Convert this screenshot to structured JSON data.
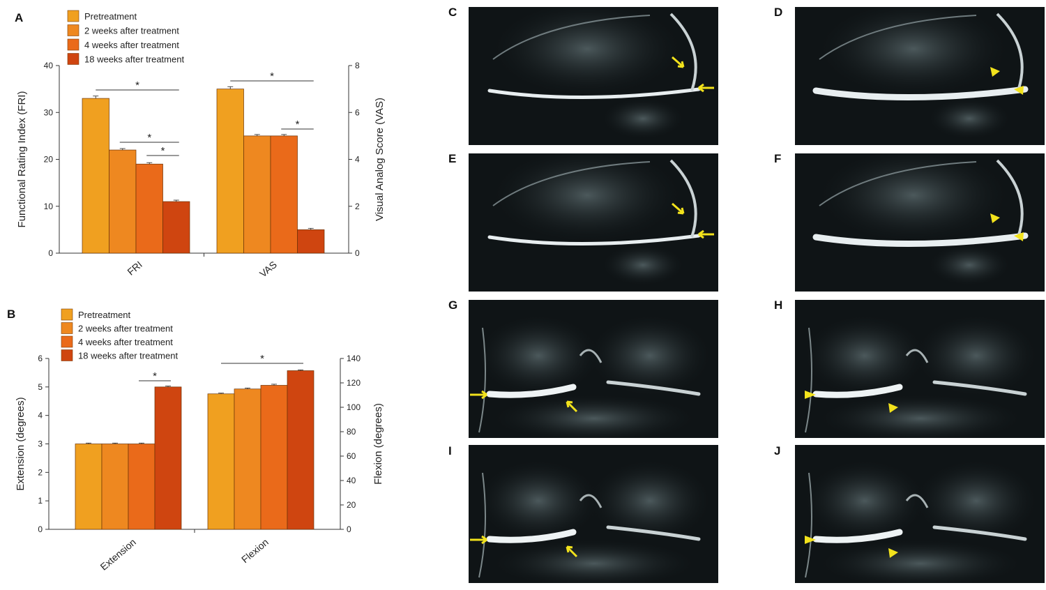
{
  "colors": {
    "pretreatment": "#f0a020",
    "week2": "#ee8820",
    "week4": "#ea6a1a",
    "week18": "#cf4510",
    "axis": "#333333",
    "mri_background": "#0f1416",
    "annotation_yellow": "#f2e21c"
  },
  "chart_data": [
    {
      "panel": "A",
      "type": "bar",
      "legend": [
        "Pretreatment",
        "2 weeks after treatment",
        "4 weeks after treatment",
        "18 weeks after treatment"
      ],
      "categories": [
        "FRI",
        "VAS"
      ],
      "ylabel": "Functional Rating Index (FRI)",
      "ylim": [
        0,
        40
      ],
      "yticks": [
        "0",
        "10",
        "20",
        "30",
        "40"
      ],
      "y2label": "Visual Analog Score (VAS)",
      "y2lim": [
        0,
        8
      ],
      "y2ticks": [
        "0",
        "2",
        "4",
        "6",
        "8"
      ],
      "groups": [
        {
          "category": "FRI",
          "axis": "left",
          "values": [
            33,
            22,
            19,
            11
          ],
          "errors": [
            0.5,
            0.3,
            0.3,
            0.3
          ]
        },
        {
          "category": "VAS",
          "axis": "right",
          "values": [
            7.0,
            5.0,
            5.0,
            1.0
          ],
          "errors": [
            0.1,
            0.06,
            0.06,
            0.06
          ]
        }
      ],
      "significance": [
        {
          "group": 0,
          "from": 0,
          "to": 3,
          "label": "*"
        },
        {
          "group": 0,
          "from": 1,
          "to": 3,
          "label": "*"
        },
        {
          "group": 0,
          "from": 2,
          "to": 3,
          "label": "*"
        },
        {
          "group": 1,
          "from": 0,
          "to": 3,
          "label": "*"
        },
        {
          "group": 1,
          "from": 2,
          "to": 3,
          "label": "*"
        }
      ]
    },
    {
      "panel": "B",
      "type": "bar",
      "legend": [
        "Pretreatment",
        "2 weeks after treatment",
        "4 weeks after treatment",
        "18 weeks after treatment"
      ],
      "categories": [
        "Extension",
        "Flexion"
      ],
      "ylabel": "Extension (degrees)",
      "ylim": [
        0,
        6
      ],
      "yticks": [
        "0",
        "1",
        "2",
        "3",
        "4",
        "5",
        "6"
      ],
      "y2label": "Flexion (degrees)",
      "y2lim": [
        0,
        140
      ],
      "y2ticks": [
        "0",
        "20",
        "40",
        "60",
        "80",
        "100",
        "120",
        "140"
      ],
      "groups": [
        {
          "category": "Extension",
          "axis": "left",
          "values": [
            3.0,
            3.0,
            3.0,
            5.0
          ],
          "errors": [
            0.03,
            0.03,
            0.03,
            0.03
          ]
        },
        {
          "category": "Flexion",
          "axis": "right",
          "values": [
            111,
            115,
            118,
            130
          ],
          "errors": [
            0.6,
            0.8,
            0.9,
            0.6
          ]
        }
      ],
      "significance": [
        {
          "group": 0,
          "from": 2,
          "to": 3,
          "label": "*"
        },
        {
          "group": 1,
          "from": 0,
          "to": 3,
          "label": "*"
        }
      ]
    }
  ],
  "panels": {
    "A": "A",
    "B": "B",
    "mri": [
      {
        "label": "C",
        "view": "sagittal",
        "marker": "arrow"
      },
      {
        "label": "D",
        "view": "sagittal",
        "marker": "arrowhead"
      },
      {
        "label": "E",
        "view": "sagittal",
        "marker": "arrow"
      },
      {
        "label": "F",
        "view": "sagittal",
        "marker": "arrowhead"
      },
      {
        "label": "G",
        "view": "coronal",
        "marker": "arrow"
      },
      {
        "label": "H",
        "view": "coronal",
        "marker": "arrowhead"
      },
      {
        "label": "I",
        "view": "coronal",
        "marker": "arrow"
      },
      {
        "label": "J",
        "view": "coronal",
        "marker": "arrowhead"
      }
    ]
  }
}
